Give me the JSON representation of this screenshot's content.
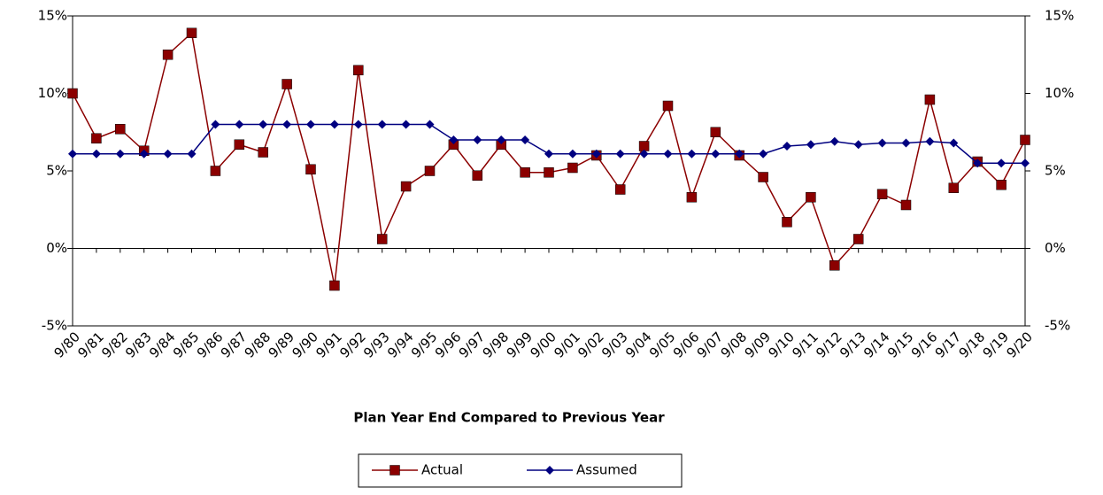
{
  "chart_data": {
    "type": "line",
    "x_label": "Plan Year End Compared to Previous Year",
    "categories": [
      "9/80",
      "9/81",
      "9/82",
      "9/83",
      "9/84",
      "9/85",
      "9/86",
      "9/87",
      "9/88",
      "9/89",
      "9/90",
      "9/91",
      "9/92",
      "9/93",
      "9/94",
      "9/95",
      "9/96",
      "9/97",
      "9/98",
      "9/99",
      "9/00",
      "9/01",
      "9/02",
      "9/03",
      "9/04",
      "9/05",
      "9/06",
      "9/07",
      "9/08",
      "9/09",
      "9/10",
      "9/11",
      "9/12",
      "9/13",
      "9/14",
      "9/15",
      "9/16",
      "9/17",
      "9/18",
      "9/19",
      "9/20"
    ],
    "series": [
      {
        "name": "Actual",
        "color": "#8b0000",
        "marker": "square",
        "values": [
          10.0,
          7.1,
          7.7,
          6.3,
          12.5,
          13.9,
          5.0,
          6.7,
          6.2,
          10.6,
          5.1,
          -2.4,
          11.5,
          0.6,
          4.0,
          5.0,
          6.7,
          4.7,
          6.7,
          4.9,
          4.9,
          5.2,
          6.0,
          3.8,
          6.6,
          9.2,
          3.3,
          7.5,
          6.0,
          4.6,
          1.7,
          3.3,
          -1.1,
          0.6,
          3.5,
          2.8,
          9.6,
          3.9,
          5.6,
          4.1,
          7.0
        ]
      },
      {
        "name": "Assumed",
        "color": "#000080",
        "marker": "diamond",
        "values": [
          6.1,
          6.1,
          6.1,
          6.1,
          6.1,
          6.1,
          8.0,
          8.0,
          8.0,
          8.0,
          8.0,
          8.0,
          8.0,
          8.0,
          8.0,
          8.0,
          7.0,
          7.0,
          7.0,
          7.0,
          6.1,
          6.1,
          6.1,
          6.1,
          6.1,
          6.1,
          6.1,
          6.1,
          6.1,
          6.1,
          6.6,
          6.7,
          6.9,
          6.7,
          6.8,
          6.8,
          6.9,
          6.8,
          5.5,
          5.5,
          5.5
        ]
      }
    ],
    "ylim": [
      -5,
      15
    ],
    "yticks": [
      {
        "value": -5,
        "label": "-5%"
      },
      {
        "value": 0,
        "label": "0%"
      },
      {
        "value": 5,
        "label": "5%"
      },
      {
        "value": 10,
        "label": "10%"
      },
      {
        "value": 15,
        "label": "15%"
      }
    ],
    "y2lim": [
      -5,
      15
    ],
    "y2ticks": [
      {
        "value": -5,
        "label": "-5%"
      },
      {
        "value": 0,
        "label": "0%"
      },
      {
        "value": 5,
        "label": "5%"
      },
      {
        "value": 10,
        "label": "10%"
      },
      {
        "value": 15,
        "label": "15%"
      }
    ],
    "legend": "bottom"
  }
}
